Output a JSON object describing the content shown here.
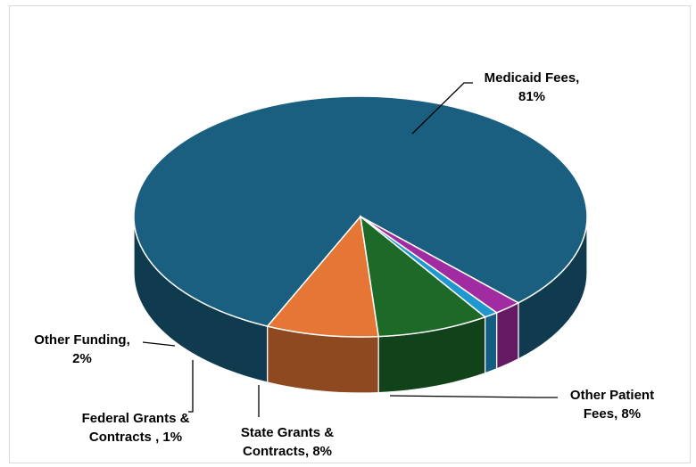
{
  "chart_data": {
    "type": "pie",
    "style": "3d",
    "title": "",
    "slices": [
      {
        "label": "Medicaid Fees",
        "value": 81,
        "color": "#1a5f80",
        "label_lines": [
          "Medicaid Fees,",
          "81%"
        ]
      },
      {
        "label": "Other Patient Fees",
        "value": 8,
        "color": "#e57635",
        "label_lines": [
          "Other Patient",
          "Fees, 8%"
        ]
      },
      {
        "label": "State Grants & Contracts",
        "value": 8,
        "color": "#1d6a28",
        "label_lines": [
          "State Grants &",
          "Contracts, 8%"
        ]
      },
      {
        "label": "Federal Grants & Contracts",
        "value": 1,
        "color": "#1f98d0",
        "label_lines": [
          "Federal Grants &",
          "Contracts , 1%"
        ]
      },
      {
        "label": "Other Funding",
        "value": 2,
        "color": "#a12ba0",
        "label_lines": [
          "Other Funding,",
          "2%"
        ]
      }
    ],
    "legend": "none",
    "data_labels": "outside with leader lines"
  }
}
